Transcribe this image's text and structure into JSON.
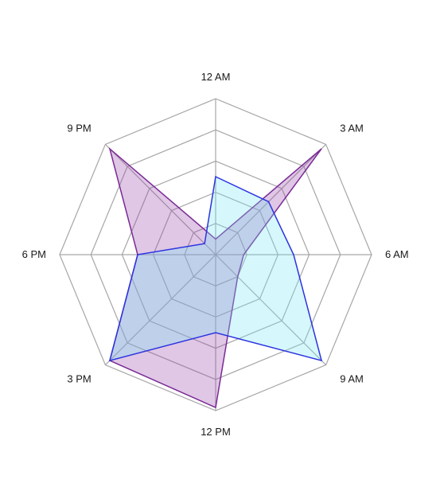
{
  "chart_data": {
    "type": "radar",
    "categories": [
      "12 AM",
      "3 AM",
      "6 AM",
      "9 AM",
      "12 PM",
      "3 PM",
      "6 PM",
      "9 PM"
    ],
    "rlim": [
      0,
      5
    ],
    "rings": 5,
    "grid": true,
    "legend": "none",
    "series": [
      {
        "values": [
          0.5,
          4.8,
          0.9,
          1.0,
          4.9,
          4.8,
          2.5,
          4.8
        ],
        "color": "#7b2a96",
        "fill": "rgba(150, 70, 170, 0.3)"
      },
      {
        "values": [
          2.5,
          2.4,
          2.5,
          4.8,
          2.5,
          4.8,
          2.5,
          0.5
        ],
        "color": "#2c33e0",
        "fill": "rgba(120, 230, 245, 0.3)"
      }
    ]
  }
}
